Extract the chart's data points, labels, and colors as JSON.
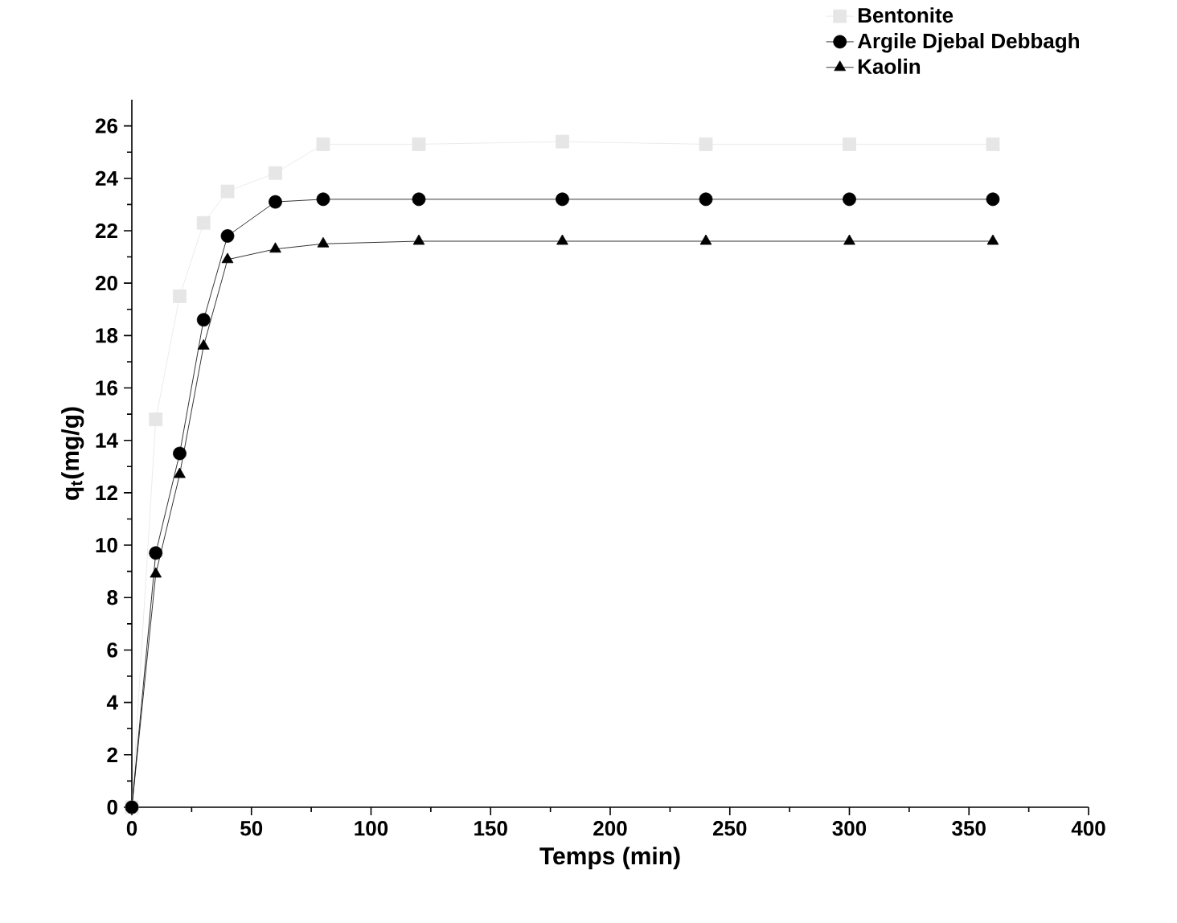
{
  "chart_data": {
    "type": "line",
    "xlabel": "Temps (min)",
    "ylabel": "q$_{t}$(mg/g)",
    "xlim": [
      0,
      400
    ],
    "xticks": [
      0,
      50,
      100,
      150,
      200,
      250,
      300,
      350,
      400
    ],
    "ylim": [
      0,
      27
    ],
    "yticks": [
      0,
      2,
      4,
      6,
      8,
      10,
      12,
      14,
      16,
      18,
      20,
      22,
      24,
      26
    ],
    "x": [
      0,
      10,
      20,
      30,
      40,
      60,
      80,
      120,
      180,
      240,
      300,
      360
    ],
    "legend": "top right",
    "line_style": "solid",
    "series": [
      {
        "name": "Bentonite",
        "color": "#e6e6e6",
        "marker": "square",
        "values": [
          0,
          14.8,
          19.5,
          22.3,
          23.5,
          24.2,
          25.3,
          25.3,
          25.4,
          25.3,
          25.3,
          25.3
        ]
      },
      {
        "name": "Argile Djebal Debbagh",
        "color": "#000000",
        "marker": "circle",
        "values": [
          0,
          9.7,
          13.5,
          18.6,
          21.8,
          23.1,
          23.2,
          23.2,
          23.2,
          23.2,
          23.2,
          23.2
        ]
      },
      {
        "name": "Kaolin",
        "color": "#000000",
        "marker": "triangle",
        "values": [
          0,
          8.9,
          12.7,
          17.6,
          20.9,
          21.3,
          21.5,
          21.6,
          21.6,
          21.6,
          21.6,
          21.6
        ]
      }
    ]
  }
}
